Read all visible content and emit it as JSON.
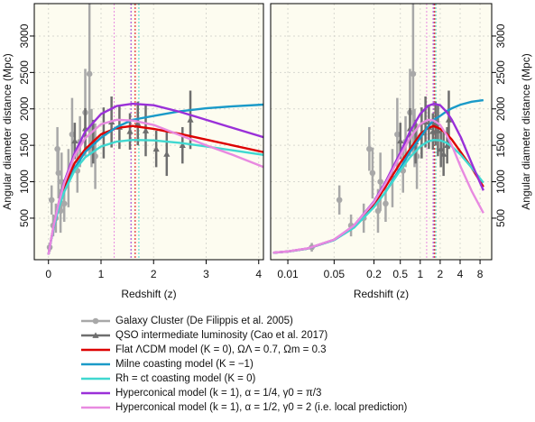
{
  "chart_data": [
    {
      "type": "line",
      "x_label": "Redshift (z)",
      "y_label": "Angular diameter distance (Mpc)",
      "log_x": false,
      "grid": true,
      "legend": "bottom",
      "xlim": [
        -0.27,
        4.09
      ],
      "xticks": [
        0,
        1,
        2,
        3,
        4
      ],
      "ylim": [
        -70,
        3445
      ],
      "yticks": [
        500,
        1000,
        1500,
        2000,
        2500,
        3000
      ],
      "x": [
        0,
        0.05,
        0.1,
        0.2,
        0.3,
        0.5,
        0.7,
        1,
        1.3,
        1.6,
        2,
        2.5,
        3,
        3.5,
        4.1
      ],
      "series": [
        {
          "name": "Galaxy Cluster (De Filippis et al. 2005)",
          "color": "#a8a8a8",
          "marker": "circle",
          "x": [
            0.023,
            0.06,
            0.09,
            0.14,
            0.17,
            0.19,
            0.23,
            0.25,
            0.3,
            0.38,
            0.45,
            0.55,
            0.6,
            0.7,
            0.78,
            0.82,
            0.89
          ],
          "values": [
            100,
            750,
            400,
            500,
            1450,
            1120,
            600,
            1000,
            700,
            1050,
            1650,
            1150,
            1550,
            1950,
            2480,
            1600,
            1350
          ],
          "errors": [
            60,
            200,
            150,
            200,
            300,
            350,
            300,
            400,
            250,
            400,
            500,
            300,
            350,
            600,
            1100,
            400,
            450
          ]
        },
        {
          "name": "QSO intermediate luminosity (Cao et al. 2017)",
          "color": "#6e6e6e",
          "marker": "triangle",
          "x": [
            0.5,
            0.7,
            0.85,
            1.05,
            1.2,
            1.35,
            1.55,
            1.7,
            1.85,
            2.05,
            2.25,
            2.55,
            2.7
          ],
          "values": [
            1560,
            1730,
            1550,
            1670,
            1820,
            1750,
            1690,
            1800,
            1700,
            1450,
            1380,
            1500,
            1850
          ],
          "errors": [
            250,
            280,
            300,
            350,
            350,
            300,
            250,
            300,
            350,
            250,
            300,
            250,
            400
          ]
        },
        {
          "name": "Flat ΛCDM model (K = 0), ΩΛ = 0.7, Ωm = 0.3",
          "color": "#dd0000",
          "peak": 1.65,
          "values": [
            0,
            201,
            389,
            693,
            933,
            1259,
            1447,
            1652,
            1738,
            1765,
            1726,
            1657,
            1578,
            1500,
            1405
          ]
        },
        {
          "name": "Milne coasting model (K = −1)",
          "color": "#1a9ac8",
          "values": [
            0,
            199,
            372,
            654,
            862,
            1190,
            1409,
            1606,
            1751,
            1850,
            1904,
            1967,
            2008,
            2035,
            2059
          ]
        },
        {
          "name": "Rh = ct coasting model (K = 0)",
          "color": "#40d8d0",
          "peak": 1.72,
          "values": [
            0,
            199,
            371,
            652,
            862,
            1158,
            1336,
            1484,
            1551,
            1574,
            1568,
            1533,
            1484,
            1431,
            1368
          ]
        },
        {
          "name": "Hyperconical model (k = 1), α = 1/4, γ0 = π/3",
          "color": "#9a30d8",
          "peak": 1.57,
          "values": [
            0,
            205,
            400,
            730,
            1000,
            1400,
            1690,
            1930,
            2040,
            2070,
            2050,
            1960,
            1850,
            1740,
            1610
          ]
        },
        {
          "name": "Hyperconical model (k = 1), α = 1/2, γ0 = 2 (i.e. local prediction)",
          "color": "#e88ae0",
          "peak": 1.25,
          "values": [
            0,
            205,
            400,
            720,
            980,
            1360,
            1600,
            1790,
            1850,
            1840,
            1780,
            1640,
            1500,
            1370,
            1200
          ]
        }
      ]
    },
    {
      "type": "line",
      "x_label": "Redshift (z)",
      "y_label": "Angular diameter distance (Mpc)",
      "log_x": true,
      "grid": true,
      "xlim": [
        0.0055,
        12
      ],
      "xticks": [
        0.01,
        0.05,
        0.2,
        0.5,
        1,
        2,
        4,
        8
      ],
      "ylim": [
        -70,
        3445
      ],
      "yticks": [
        500,
        1000,
        1500,
        2000,
        2500,
        3000
      ],
      "x": [
        0.006,
        0.01,
        0.02,
        0.05,
        0.1,
        0.2,
        0.3,
        0.5,
        0.7,
        1,
        1.3,
        1.6,
        2,
        2.5,
        3,
        4.1,
        6,
        9
      ],
      "series": [
        {
          "name": "Galaxy Cluster (De Filippis et al. 2005)",
          "color": "#a8a8a8",
          "marker": "circle",
          "x": [
            0.023,
            0.06,
            0.09,
            0.14,
            0.17,
            0.19,
            0.23,
            0.25,
            0.3,
            0.38,
            0.45,
            0.55,
            0.6,
            0.7,
            0.78,
            0.82,
            0.89
          ],
          "values": [
            100,
            750,
            400,
            500,
            1450,
            1120,
            600,
            1000,
            700,
            1050,
            1650,
            1150,
            1550,
            1950,
            2480,
            1600,
            1350
          ],
          "errors": [
            60,
            200,
            150,
            200,
            300,
            350,
            300,
            400,
            250,
            400,
            500,
            300,
            350,
            600,
            1100,
            400,
            450
          ]
        },
        {
          "name": "QSO intermediate luminosity (Cao et al. 2017)",
          "color": "#6e6e6e",
          "marker": "triangle",
          "x": [
            0.5,
            0.7,
            0.85,
            1.05,
            1.2,
            1.35,
            1.55,
            1.7,
            1.85,
            2.05,
            2.25,
            2.55,
            2.7
          ],
          "values": [
            1560,
            1730,
            1550,
            1670,
            1820,
            1750,
            1690,
            1800,
            1700,
            1450,
            1380,
            1500,
            1850
          ],
          "errors": [
            250,
            280,
            300,
            350,
            350,
            300,
            250,
            300,
            350,
            250,
            300,
            250,
            400
          ]
        },
        {
          "name": "Flat ΛCDM model (K = 0), ΩΛ = 0.7, Ωm = 0.3",
          "color": "#dd0000",
          "peak": 1.65,
          "values": [
            25,
            42,
            83,
            201,
            389,
            693,
            933,
            1259,
            1447,
            1652,
            1738,
            1765,
            1726,
            1657,
            1578,
            1405,
            1190,
            930
          ]
        },
        {
          "name": "Milne coasting model (K = −1)",
          "color": "#1a9ac8",
          "values": [
            25,
            42,
            83,
            199,
            372,
            654,
            862,
            1190,
            1409,
            1606,
            1751,
            1850,
            1904,
            1967,
            2008,
            2059,
            2098,
            2120
          ]
        },
        {
          "name": "Rh = ct coasting model (K = 0)",
          "color": "#40d8d0",
          "peak": 1.72,
          "values": [
            25,
            42,
            83,
            199,
            371,
            652,
            862,
            1158,
            1336,
            1484,
            1551,
            1574,
            1568,
            1533,
            1484,
            1368,
            1191,
            986
          ]
        },
        {
          "name": "Hyperconical model (k = 1), α = 1/4, γ0 = π/3",
          "color": "#9a30d8",
          "peak": 1.57,
          "values": [
            26,
            43,
            85,
            205,
            400,
            730,
            1000,
            1400,
            1690,
            1930,
            2040,
            2070,
            2050,
            1960,
            1850,
            1610,
            1250,
            880
          ]
        },
        {
          "name": "Hyperconical model (k = 1), α = 1/2, γ0 = 2 (i.e. local prediction)",
          "color": "#e88ae0",
          "peak": 1.25,
          "values": [
            26,
            43,
            85,
            205,
            400,
            720,
            980,
            1360,
            1600,
            1790,
            1850,
            1840,
            1780,
            1640,
            1500,
            1200,
            870,
            570
          ]
        }
      ]
    }
  ]
}
